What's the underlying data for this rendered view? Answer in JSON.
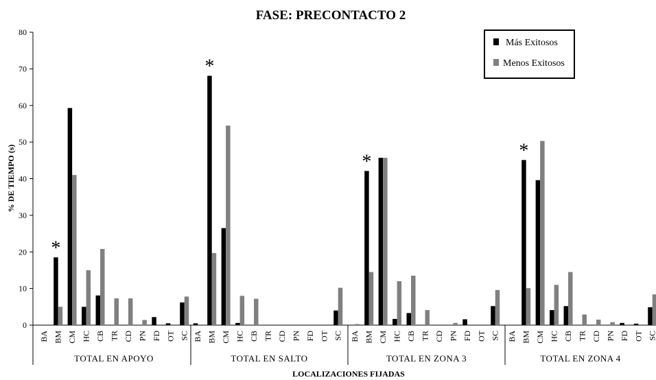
{
  "chart_data": {
    "type": "bar",
    "title": "FASE: PRECONTACTO 2",
    "ylabel": "% DE TIEMPO (s)",
    "xlabel": "LOCALIZACIONES FIJADAS",
    "ylim": [
      0,
      80
    ],
    "yticks": [
      0,
      10,
      20,
      30,
      40,
      50,
      60,
      70,
      80
    ],
    "grid": false,
    "legend_position": "top-right",
    "categories": [
      "BA",
      "BM",
      "CM",
      "HC",
      "CB",
      "TR",
      "CD",
      "PN",
      "FD",
      "OT",
      "SC"
    ],
    "series": [
      {
        "name": "Más Exitosos",
        "color": "#000000"
      },
      {
        "name": "Menos Exitosos",
        "color": "#808080"
      }
    ],
    "groups": [
      {
        "label": "TOTAL  EN  APOYO",
        "mas": [
          0,
          18.5,
          59.3,
          5,
          8.1,
          0,
          0,
          0,
          2.2,
          0.5,
          6.2
        ],
        "menos": [
          0,
          5,
          41,
          15,
          20.8,
          7.3,
          7.3,
          1.4,
          0,
          0,
          7.8
        ],
        "star_index": 1
      },
      {
        "label": "TOTAL  EN  SALTO",
        "mas": [
          0.5,
          68.1,
          26.5,
          0.6,
          0,
          0,
          0,
          0,
          0,
          0,
          4
        ],
        "menos": [
          0,
          19.7,
          54.5,
          8,
          7.2,
          0,
          0,
          0,
          0,
          0,
          10.2
        ],
        "star_index": 1
      },
      {
        "label": "TOTAL  EN  ZONA  3",
        "mas": [
          0,
          42.1,
          45.7,
          1.7,
          3.3,
          0,
          0,
          0,
          1.6,
          0,
          5.2
        ],
        "menos": [
          0.3,
          14.5,
          45.7,
          12,
          13.5,
          4.1,
          0,
          0.6,
          0,
          0,
          9.6
        ],
        "star_index": 1
      },
      {
        "label": "TOTAL  EN  ZONA  4",
        "mas": [
          0,
          45.1,
          39.6,
          4.1,
          5.2,
          0,
          0,
          0,
          0.6,
          0.4,
          4.9
        ],
        "menos": [
          0,
          10.1,
          50.3,
          11,
          14.5,
          2.9,
          1.5,
          0.8,
          0,
          0,
          8.4
        ],
        "star_index": 1
      }
    ],
    "annotation_symbol": "*"
  }
}
